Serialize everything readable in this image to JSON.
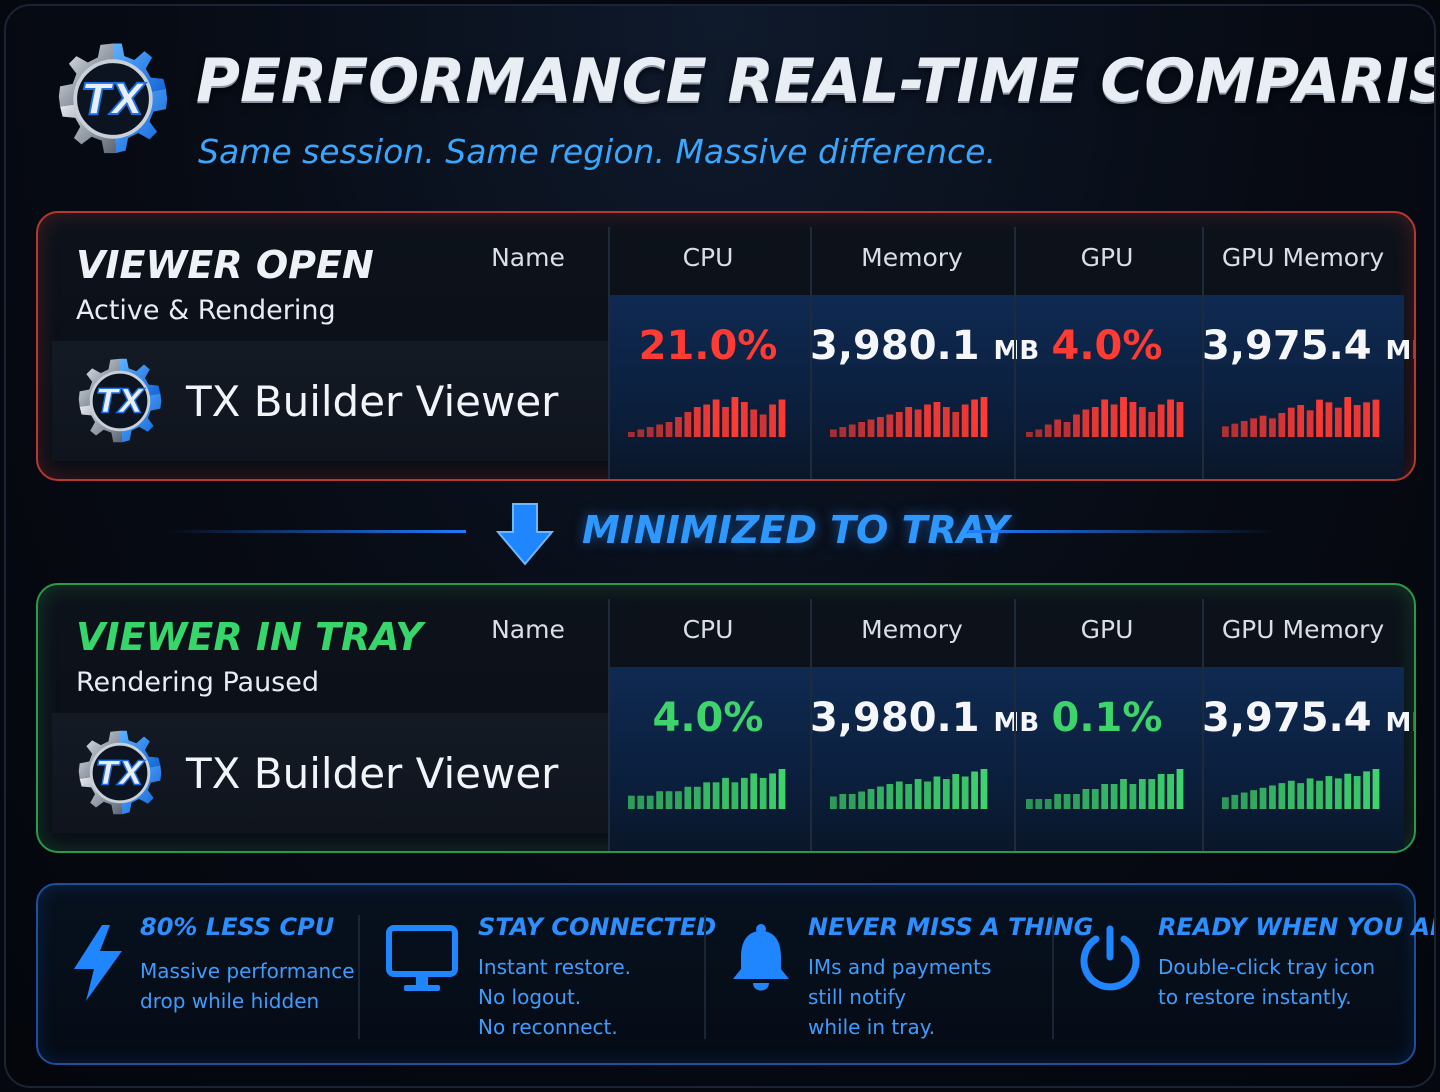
{
  "header": {
    "title": "PERFORMANCE REAL-TIME COMPARISON",
    "subtitle": "Same session. Same region. Massive difference.",
    "logo_text": "TX"
  },
  "columns": [
    "Name",
    "CPU",
    "Memory",
    "GPU",
    "GPU Memory"
  ],
  "panels": [
    {
      "state": "VIEWER OPEN",
      "sub": "Active & Rendering",
      "app_name": "TX Builder Viewer",
      "accent": "#ff3b33",
      "metrics": {
        "cpu": "21.0%",
        "memory_value": "3,980.1",
        "memory_unit": "MB",
        "gpu": "4.0%",
        "gpu_memory_value": "3,975.4",
        "gpu_memory_unit": "MB"
      },
      "sparklines": {
        "cpu": [
          2,
          3,
          4,
          5,
          6,
          8,
          10,
          12,
          13,
          15,
          12,
          16,
          14,
          11,
          9,
          13,
          15
        ],
        "memory": [
          3,
          4,
          5,
          6,
          7,
          8,
          9,
          10,
          12,
          11,
          13,
          14,
          12,
          10,
          13,
          15,
          16
        ],
        "gpu": [
          2,
          3,
          5,
          7,
          6,
          9,
          11,
          12,
          15,
          13,
          16,
          14,
          12,
          10,
          13,
          15,
          14
        ],
        "gpu_memory": [
          4,
          5,
          6,
          7,
          8,
          7,
          9,
          11,
          12,
          10,
          14,
          13,
          11,
          15,
          12,
          13,
          14
        ]
      }
    },
    {
      "state": "VIEWER IN TRAY",
      "sub": "Rendering Paused",
      "app_name": "TX Builder Viewer",
      "accent": "#3fd36b",
      "metrics": {
        "cpu": "4.0%",
        "memory_value": "3,980.1",
        "memory_unit": "MB",
        "gpu": "0.1%",
        "gpu_memory_value": "3,975.4",
        "gpu_memory_unit": "MB"
      },
      "sparklines": {
        "cpu": [
          3,
          3,
          3,
          4,
          4,
          4,
          5,
          5,
          6,
          6,
          7,
          6,
          7,
          8,
          7,
          8,
          9
        ],
        "memory": [
          5,
          6,
          6,
          7,
          8,
          9,
          10,
          11,
          10,
          12,
          11,
          13,
          12,
          14,
          13,
          15,
          16
        ],
        "gpu": [
          2,
          2,
          2,
          3,
          3,
          3,
          4,
          4,
          5,
          5,
          6,
          5,
          6,
          6,
          7,
          7,
          8
        ],
        "gpu_memory": [
          5,
          6,
          7,
          8,
          9,
          10,
          11,
          12,
          11,
          13,
          12,
          14,
          13,
          15,
          14,
          16,
          17
        ]
      }
    }
  ],
  "divider": {
    "label": "MINIMIZED TO TRAY"
  },
  "features": [
    {
      "icon": "lightning-icon",
      "title": "80% LESS CPU",
      "lines": [
        "Massive performance",
        "drop while hidden"
      ]
    },
    {
      "icon": "monitor-icon",
      "title": "STAY CONNECTED",
      "lines": [
        "Instant restore.",
        "No logout.",
        "No reconnect."
      ]
    },
    {
      "icon": "bell-icon",
      "title": "NEVER MISS A THING",
      "lines": [
        "IMs and payments",
        "still notify",
        "while in tray."
      ]
    },
    {
      "icon": "power-icon",
      "title": "READY WHEN YOU ARE",
      "lines": [
        "Double-click tray icon",
        "to restore instantly."
      ]
    }
  ],
  "colors": {
    "accent_blue": "#2d8fff",
    "red": "#ff3b33",
    "green": "#3fd36b"
  }
}
